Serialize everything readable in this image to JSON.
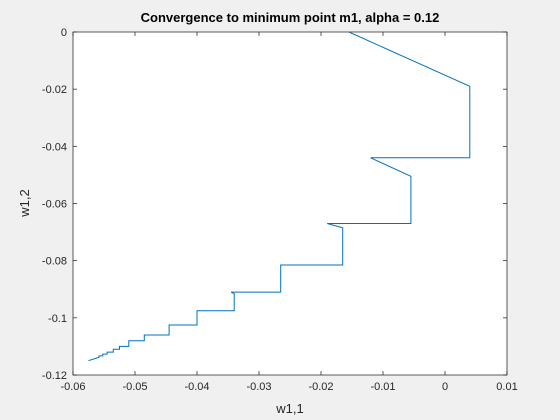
{
  "chart_data": {
    "type": "line",
    "title": "Convergence to minimum point m1, alpha = 0.12",
    "xlabel": "w1,1",
    "ylabel": "w1,2",
    "xlim": [
      -0.06,
      0.01
    ],
    "ylim": [
      -0.12,
      0
    ],
    "xticks": [
      "-0.06",
      "-0.05",
      "-0.04",
      "-0.03",
      "-0.02",
      "-0.01",
      "0",
      "0.01"
    ],
    "yticks": [
      "0",
      "-0.02",
      "-0.04",
      "-0.06",
      "-0.08",
      "-0.1",
      "-0.12"
    ],
    "grid": false,
    "line_color": "#0072bd",
    "series": [
      {
        "x": [
          -0.0155,
          0.004,
          0.004,
          -0.012,
          -0.0055,
          -0.0055,
          -0.019,
          -0.0165,
          -0.0165,
          -0.0265,
          -0.0265,
          -0.0265,
          -0.0345,
          -0.034,
          -0.034,
          -0.04,
          -0.04,
          -0.04,
          -0.0445,
          -0.0445,
          -0.0445,
          -0.0485,
          -0.0485,
          -0.0485,
          -0.051,
          -0.051,
          -0.0525,
          -0.0525,
          -0.0535,
          -0.0535,
          -0.0545,
          -0.0545,
          -0.0552,
          -0.0552,
          -0.0558,
          -0.0558,
          -0.0575
        ],
        "y": [
          0,
          -0.019,
          -0.044,
          -0.044,
          -0.0505,
          -0.067,
          -0.067,
          -0.0685,
          -0.0815,
          -0.0815,
          -0.091,
          -0.091,
          -0.091,
          -0.0915,
          -0.0975,
          -0.0975,
          -0.0975,
          -0.1025,
          -0.1025,
          -0.1025,
          -0.106,
          -0.106,
          -0.106,
          -0.108,
          -0.108,
          -0.11,
          -0.11,
          -0.111,
          -0.111,
          -0.112,
          -0.112,
          -0.1127,
          -0.1127,
          -0.1133,
          -0.1133,
          -0.1138,
          -0.115
        ]
      }
    ]
  }
}
